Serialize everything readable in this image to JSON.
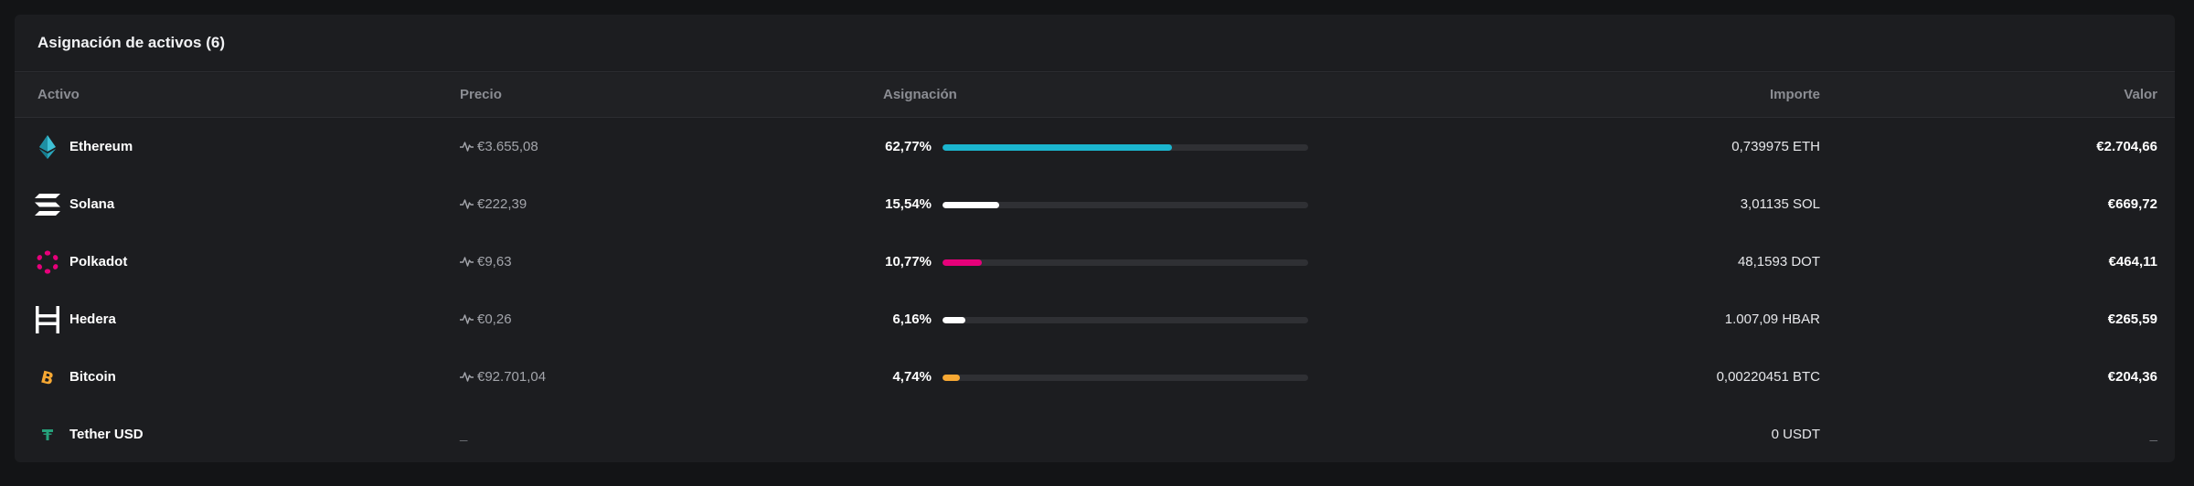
{
  "panel": {
    "title": "Asignación de activos (6)"
  },
  "columns": {
    "asset": "Activo",
    "price": "Precio",
    "allocation": "Asignación",
    "amount": "Importe",
    "value": "Valor"
  },
  "assets": [
    {
      "name": "Ethereum",
      "icon": "ethereum-icon",
      "price": "€3.655,08",
      "allocation": "62,77%",
      "allocation_fraction": 0.6277,
      "bar_color": "#1bb5cf",
      "amount": "0,739975 ETH",
      "value": "€2.704,66"
    },
    {
      "name": "Solana",
      "icon": "solana-icon",
      "price": "€222,39",
      "allocation": "15,54%",
      "allocation_fraction": 0.1554,
      "bar_color": "#ffffff",
      "amount": "3,01135 SOL",
      "value": "€669,72"
    },
    {
      "name": "Polkadot",
      "icon": "polkadot-icon",
      "price": "€9,63",
      "allocation": "10,77%",
      "allocation_fraction": 0.1077,
      "bar_color": "#e6007a",
      "amount": "48,1593 DOT",
      "value": "€464,11"
    },
    {
      "name": "Hedera",
      "icon": "hedera-icon",
      "price": "€0,26",
      "allocation": "6,16%",
      "allocation_fraction": 0.0616,
      "bar_color": "#ffffff",
      "amount": "1.007,09 HBAR",
      "value": "€265,59"
    },
    {
      "name": "Bitcoin",
      "icon": "bitcoin-icon",
      "price": "€92.701,04",
      "allocation": "4,74%",
      "allocation_fraction": 0.0474,
      "bar_color": "#f7a833",
      "amount": "0,00220451 BTC",
      "value": "€204,36"
    },
    {
      "name": "Tether USD",
      "icon": "tether-icon",
      "price": "_",
      "allocation": "",
      "allocation_fraction": null,
      "bar_color": "",
      "amount": "0 USDT",
      "value": "_"
    }
  ],
  "colors": {
    "background": "#131416",
    "panel": "#1c1d20",
    "header_row": "#202124",
    "muted_text": "#8b8d93",
    "bar_track": "#2f3034"
  }
}
